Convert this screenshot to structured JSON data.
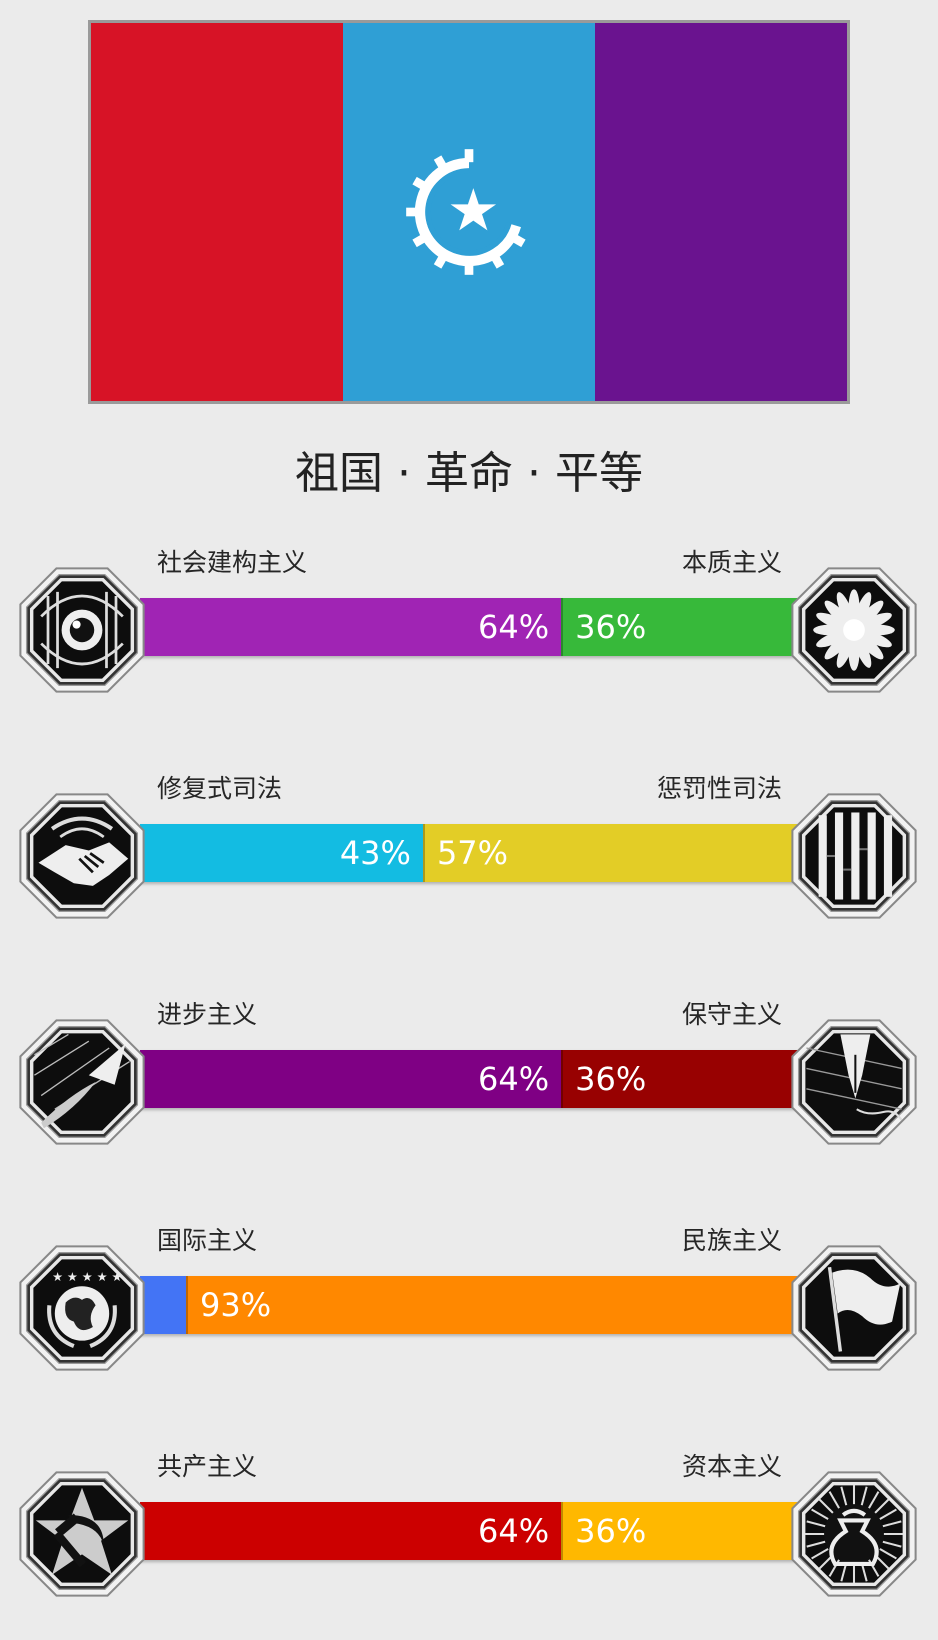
{
  "flag": {
    "bands": [
      "#d71326",
      "#2f9fd5",
      "#6a138f"
    ],
    "emblem": "gear-star-emblem-icon"
  },
  "motto": "祖国 · 革命 · 平等",
  "axes": [
    {
      "left_label": "社会建构主义",
      "right_label": "本质主义",
      "left_value": 64,
      "right_value": 36,
      "left_pct": "64%",
      "right_pct": "36%",
      "left_color": "#a024b4",
      "right_color": "#37b93a",
      "left_icon": "eye-icon",
      "right_icon": "flower-icon"
    },
    {
      "left_label": "修复式司法",
      "right_label": "惩罚性司法",
      "left_value": 43,
      "right_value": 57,
      "left_pct": "43%",
      "right_pct": "57%",
      "left_color": "#13bce2",
      "right_color": "#e3cd26",
      "left_icon": "handshake-icon",
      "right_icon": "prison-bars-icon"
    },
    {
      "left_label": "进步主义",
      "right_label": "保守主义",
      "left_value": 64,
      "right_value": 36,
      "left_pct": "64%",
      "right_pct": "36%",
      "left_color": "#7f0084",
      "right_color": "#980101",
      "left_icon": "rocket-icon",
      "right_icon": "fountain-pen-icon"
    },
    {
      "left_label": "国际主义",
      "right_label": "民族主义",
      "left_value": 7,
      "right_value": 93,
      "left_pct": "",
      "right_pct": "93%",
      "left_color": "#4374f5",
      "right_color": "#ff8800",
      "left_icon": "globe-icon",
      "right_icon": "flag-icon"
    },
    {
      "left_label": "共产主义",
      "right_label": "资本主义",
      "left_value": 64,
      "right_value": 36,
      "left_pct": "64%",
      "right_pct": "36%",
      "left_color": "#cc0000",
      "right_color": "#ffb800",
      "left_icon": "hammer-sickle-icon",
      "right_icon": "money-bag-icon"
    }
  ]
}
